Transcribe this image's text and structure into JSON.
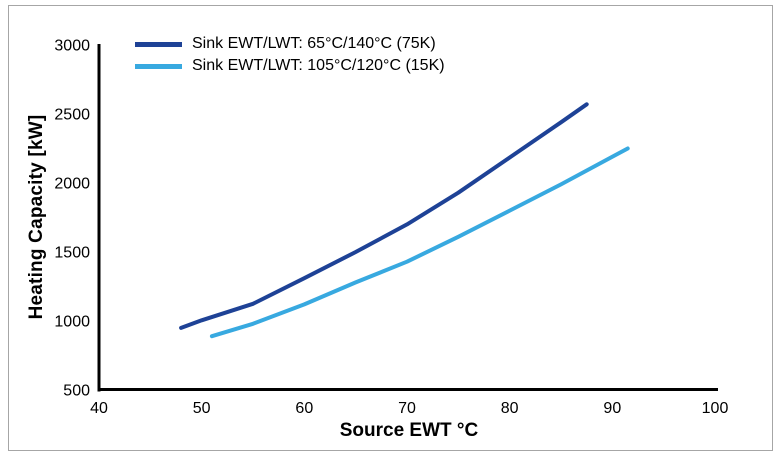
{
  "chart_data": {
    "type": "line",
    "title": "",
    "xlabel": "Source EWT °C",
    "ylabel": "Heating Capacity [kW]",
    "xlim": [
      40,
      100
    ],
    "ylim": [
      500,
      3000
    ],
    "x_ticks": [
      40,
      50,
      60,
      70,
      80,
      90,
      100
    ],
    "y_ticks": [
      500,
      1000,
      1500,
      2000,
      2500,
      3000
    ],
    "grid": false,
    "legend_position": "top-left",
    "axis_color": "#000000",
    "series": [
      {
        "name": "Sink EWT/LWT: 65°C/140°C (75K)",
        "color": "#1e4296",
        "points": [
          [
            48,
            950
          ],
          [
            50,
            1005
          ],
          [
            55,
            1125
          ],
          [
            60,
            1310
          ],
          [
            65,
            1500
          ],
          [
            70,
            1700
          ],
          [
            75,
            1930
          ],
          [
            80,
            2185
          ],
          [
            85,
            2440
          ],
          [
            87.5,
            2570
          ]
        ]
      },
      {
        "name": "Sink EWT/LWT: 105°C/120°C (15K)",
        "color": "#38a9e0",
        "points": [
          [
            51,
            890
          ],
          [
            55,
            980
          ],
          [
            60,
            1120
          ],
          [
            65,
            1280
          ],
          [
            70,
            1430
          ],
          [
            75,
            1610
          ],
          [
            80,
            1800
          ],
          [
            85,
            1990
          ],
          [
            90,
            2190
          ],
          [
            91.5,
            2250
          ]
        ]
      }
    ]
  }
}
